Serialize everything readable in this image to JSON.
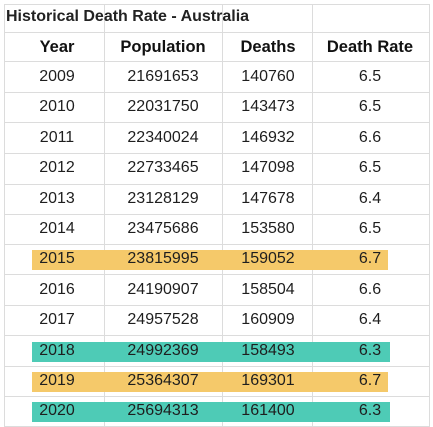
{
  "title": "Historical Death Rate - Australia",
  "columns": [
    "Year",
    "Population",
    "Deaths",
    "Death Rate"
  ],
  "rows": [
    {
      "year": "2009",
      "population": "21691653",
      "deaths": "140760",
      "rate": "6.5",
      "highlight": "none"
    },
    {
      "year": "2010",
      "population": "22031750",
      "deaths": "143473",
      "rate": "6.5",
      "highlight": "none"
    },
    {
      "year": "2011",
      "population": "22340024",
      "deaths": "146932",
      "rate": "6.6",
      "highlight": "none"
    },
    {
      "year": "2012",
      "population": "22733465",
      "deaths": "147098",
      "rate": "6.5",
      "highlight": "none"
    },
    {
      "year": "2013",
      "population": "23128129",
      "deaths": "147678",
      "rate": "6.4",
      "highlight": "none"
    },
    {
      "year": "2014",
      "population": "23475686",
      "deaths": "153580",
      "rate": "6.5",
      "highlight": "none"
    },
    {
      "year": "2015",
      "population": "23815995",
      "deaths": "159052",
      "rate": "6.7",
      "highlight": "yellow"
    },
    {
      "year": "2016",
      "population": "24190907",
      "deaths": "158504",
      "rate": "6.6",
      "highlight": "none"
    },
    {
      "year": "2017",
      "population": "24957528",
      "deaths": "160909",
      "rate": "6.4",
      "highlight": "none"
    },
    {
      "year": "2018",
      "population": "24992369",
      "deaths": "158493",
      "rate": "6.3",
      "highlight": "teal"
    },
    {
      "year": "2019",
      "population": "25364307",
      "deaths": "169301",
      "rate": "6.7",
      "highlight": "yellow"
    },
    {
      "year": "2020",
      "population": "25694313",
      "deaths": "161400",
      "rate": "6.3",
      "highlight": "teal"
    }
  ],
  "colors": {
    "yellow": "#f5c96a",
    "teal": "#4ecbb6",
    "gridline": "#dcdcdc",
    "text": "#1e1e1e"
  }
}
